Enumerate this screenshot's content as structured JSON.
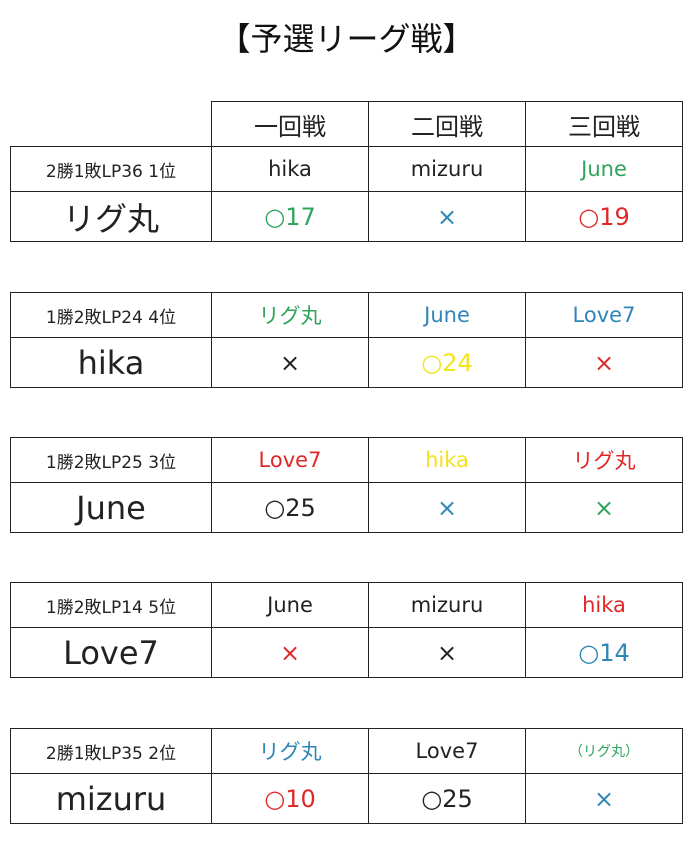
{
  "title": "【予選リーグ戦】",
  "colors": {
    "black": "#222222",
    "green": "#2ea45c",
    "blue": "#2e86b8",
    "red": "#e02828",
    "yellow": "#f2e41c"
  },
  "rounds": [
    "一回戦",
    "二回戦",
    "三回戦"
  ],
  "players": [
    {
      "record": "2勝1敗LP36  1位",
      "name": "リグ丸",
      "opponents": [
        {
          "text": "hika",
          "color": "black"
        },
        {
          "text": "mizuru",
          "color": "black"
        },
        {
          "text": "June",
          "color": "green"
        }
      ],
      "results": [
        {
          "text": "○17",
          "color": "green"
        },
        {
          "text": "×",
          "color": "blue"
        },
        {
          "text": "○19",
          "color": "red"
        }
      ]
    },
    {
      "record": "1勝2敗LP24  4位",
      "name": "hika",
      "opponents": [
        {
          "text": "リグ丸",
          "color": "green"
        },
        {
          "text": "June",
          "color": "blue"
        },
        {
          "text": "Love7",
          "color": "blue"
        }
      ],
      "results": [
        {
          "text": "×",
          "color": "black"
        },
        {
          "text": "○24",
          "color": "yellow"
        },
        {
          "text": "×",
          "color": "red"
        }
      ]
    },
    {
      "record": "1勝2敗LP25  3位",
      "name": "June",
      "opponents": [
        {
          "text": "Love7",
          "color": "red"
        },
        {
          "text": "hika",
          "color": "yellow"
        },
        {
          "text": "リグ丸",
          "color": "red"
        }
      ],
      "results": [
        {
          "text": "○25",
          "color": "black"
        },
        {
          "text": "×",
          "color": "blue"
        },
        {
          "text": "×",
          "color": "green"
        }
      ]
    },
    {
      "record": "1勝2敗LP14  5位",
      "name": "Love7",
      "opponents": [
        {
          "text": "June",
          "color": "black"
        },
        {
          "text": "mizuru",
          "color": "black"
        },
        {
          "text": "hika",
          "color": "red"
        }
      ],
      "results": [
        {
          "text": "×",
          "color": "red"
        },
        {
          "text": "×",
          "color": "black"
        },
        {
          "text": "○14",
          "color": "blue"
        }
      ]
    },
    {
      "record": "2勝1敗LP35  2位",
      "name": "mizuru",
      "opponents": [
        {
          "text": "リグ丸",
          "color": "blue"
        },
        {
          "text": "Love7",
          "color": "black"
        },
        {
          "text": "（リグ丸）",
          "color": "green",
          "small": true
        }
      ],
      "results": [
        {
          "text": "○10",
          "color": "red"
        },
        {
          "text": "○25",
          "color": "black"
        },
        {
          "text": "×",
          "color": "blue"
        }
      ]
    }
  ]
}
